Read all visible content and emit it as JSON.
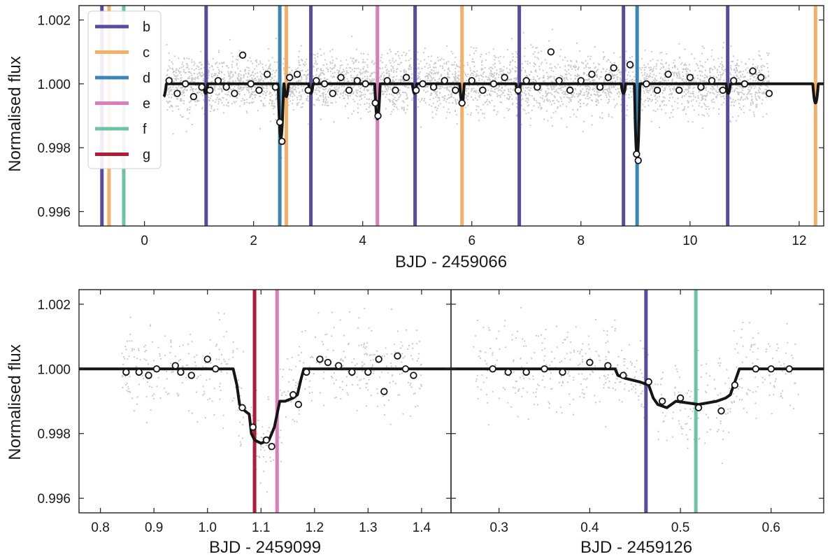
{
  "chart_data": [
    {
      "type": "scatter",
      "panel": "top",
      "xlabel": "BJD - 2459066",
      "ylabel": "Normalised flux",
      "xlim": [
        -1.2,
        12.45
      ],
      "ylim": [
        0.99555,
        1.00245
      ],
      "xticks": [
        "0",
        "2",
        "4",
        "6",
        "8",
        "10",
        "12"
      ],
      "yticks": [
        "0.996",
        "0.998",
        "1.000",
        "1.002"
      ],
      "raw_data_range": [
        0.4,
        11.45
      ],
      "raw_scatter": 0.0006,
      "binned_points": [
        [
          0.45,
          1.0001
        ],
        [
          0.6,
          0.9997
        ],
        [
          0.75,
          1.0
        ],
        [
          0.9,
          0.9996
        ],
        [
          1.05,
          0.9999
        ],
        [
          1.2,
          0.9998
        ],
        [
          1.35,
          1.0001
        ],
        [
          1.5,
          0.9999
        ],
        [
          1.65,
          0.9997
        ],
        [
          1.8,
          1.0009
        ],
        [
          1.95,
          1.0
        ],
        [
          2.1,
          0.9998
        ],
        [
          2.25,
          1.0003
        ],
        [
          2.4,
          0.9999
        ],
        [
          2.48,
          0.9988
        ],
        [
          2.52,
          0.9982
        ],
        [
          2.66,
          1.0002
        ],
        [
          2.8,
          1.0003
        ],
        [
          3.0,
          0.9998
        ],
        [
          3.15,
          1.0001
        ],
        [
          3.3,
          1.0
        ],
        [
          3.45,
          0.9997
        ],
        [
          3.6,
          1.0002
        ],
        [
          3.75,
          0.9998
        ],
        [
          3.9,
          1.0001
        ],
        [
          4.05,
          1.0
        ],
        [
          4.23,
          0.9994
        ],
        [
          4.28,
          0.999
        ],
        [
          4.45,
          1.0001
        ],
        [
          4.6,
          0.9998
        ],
        [
          4.8,
          1.0002
        ],
        [
          4.98,
          0.9998
        ],
        [
          5.1,
          1.0
        ],
        [
          5.3,
          0.9999
        ],
        [
          5.5,
          1.0001
        ],
        [
          5.7,
          0.9998
        ],
        [
          5.82,
          0.9994
        ],
        [
          6.0,
          1.0001
        ],
        [
          6.2,
          0.9998
        ],
        [
          6.4,
          1.0
        ],
        [
          6.6,
          1.0002
        ],
        [
          6.85,
          0.9998
        ],
        [
          7.0,
          1.0001
        ],
        [
          7.2,
          0.9999
        ],
        [
          7.45,
          1.001
        ],
        [
          7.6,
          1.0001
        ],
        [
          7.8,
          0.9998
        ],
        [
          8.0,
          1.0001
        ],
        [
          8.2,
          1.0003
        ],
        [
          8.35,
          0.9999
        ],
        [
          8.5,
          1.0002
        ],
        [
          8.6,
          1.0005
        ],
        [
          8.9,
          1.0006
        ],
        [
          9.02,
          0.9978
        ],
        [
          9.05,
          0.9976
        ],
        [
          9.2,
          1.0
        ],
        [
          9.4,
          0.9998
        ],
        [
          9.6,
          1.0003
        ],
        [
          9.8,
          0.9998
        ],
        [
          10.0,
          1.0002
        ],
        [
          10.2,
          0.9999
        ],
        [
          10.4,
          1.0001
        ],
        [
          10.6,
          0.9998
        ],
        [
          10.8,
          1.0001
        ],
        [
          11.0,
          1.0
        ],
        [
          11.15,
          1.0004
        ],
        [
          11.3,
          1.0002
        ],
        [
          11.45,
          0.9997
        ]
      ],
      "model": {
        "baseline": 1.0,
        "dips": [
          [
            0.35,
            0.9996,
            0.05
          ],
          [
            1.12,
            0.9997,
            0.04
          ],
          [
            2.5,
            0.9983,
            0.05
          ],
          [
            2.6,
            0.9996,
            0.04
          ],
          [
            3.05,
            0.9997,
            0.04
          ],
          [
            4.27,
            0.9989,
            0.05
          ],
          [
            4.95,
            0.9997,
            0.04
          ],
          [
            5.82,
            0.9994,
            0.04
          ],
          [
            6.85,
            0.9997,
            0.04
          ],
          [
            8.78,
            0.9997,
            0.04
          ],
          [
            9.03,
            0.9977,
            0.05
          ],
          [
            10.7,
            0.9997,
            0.04
          ],
          [
            12.3,
            0.9994,
            0.05
          ]
        ]
      },
      "legend_placement": "upper-left",
      "legend": [
        "b",
        "c",
        "d",
        "e",
        "f",
        "g"
      ],
      "series_colors": {
        "b": "#5a4c9c",
        "c": "#f5b068",
        "d": "#3b86b5",
        "e": "#d97dbc",
        "f": "#6cc4a4",
        "g": "#ad1e36"
      },
      "vlines": [
        {
          "planet": "b",
          "x": [
            -0.78,
            1.13,
            3.05,
            4.96,
            6.87,
            8.78,
            10.69
          ]
        },
        {
          "planet": "c",
          "x": [
            -0.65,
            2.6,
            5.82,
            12.3
          ]
        },
        {
          "planet": "d",
          "x": [
            2.48,
            9.03
          ]
        },
        {
          "planet": "e",
          "x": [
            4.27
          ]
        },
        {
          "planet": "f",
          "x": [
            -0.38
          ]
        }
      ],
      "grid": false
    },
    {
      "type": "scatter",
      "panel": "bottom-left",
      "xlabel": "BJD - 2459099",
      "ylabel": "Normalised flux",
      "xlim": [
        0.76,
        1.455
      ],
      "ylim": [
        0.99555,
        1.00245
      ],
      "xticks": [
        "0.8",
        "0.9",
        "1.0",
        "1.1",
        "1.2",
        "1.3",
        "1.4"
      ],
      "yticks": [
        "0.996",
        "0.998",
        "1.000",
        "1.002"
      ],
      "raw_data_range": [
        0.84,
        1.4
      ],
      "raw_scatter": 0.0009,
      "binned_points": [
        [
          0.848,
          0.9999
        ],
        [
          0.872,
          0.9999
        ],
        [
          0.89,
          0.9998
        ],
        [
          0.905,
          1.0
        ],
        [
          0.94,
          1.0001
        ],
        [
          0.95,
          0.9999
        ],
        [
          0.97,
          0.9998
        ],
        [
          1.0,
          1.0003
        ],
        [
          1.015,
          1.0
        ],
        [
          1.065,
          0.9988
        ],
        [
          1.085,
          0.9982
        ],
        [
          1.11,
          0.9978
        ],
        [
          1.12,
          0.9976
        ],
        [
          1.16,
          0.9992
        ],
        [
          1.17,
          0.9989
        ],
        [
          1.185,
          0.9999
        ],
        [
          1.21,
          1.0003
        ],
        [
          1.225,
          1.0002
        ],
        [
          1.245,
          1.0001
        ],
        [
          1.27,
          0.9999
        ],
        [
          1.3,
          0.9999
        ],
        [
          1.32,
          1.0003
        ],
        [
          1.33,
          0.9993
        ],
        [
          1.355,
          1.0004
        ],
        [
          1.37,
          1.0
        ],
        [
          1.385,
          0.9998
        ]
      ],
      "model_curve": [
        [
          0.76,
          1.0
        ],
        [
          1.048,
          1.0
        ],
        [
          1.055,
          0.9995
        ],
        [
          1.06,
          0.9989
        ],
        [
          1.07,
          0.9987
        ],
        [
          1.078,
          0.9986
        ],
        [
          1.082,
          0.998
        ],
        [
          1.088,
          0.9978
        ],
        [
          1.1,
          0.9977
        ],
        [
          1.115,
          0.9978
        ],
        [
          1.125,
          0.9982
        ],
        [
          1.135,
          0.999
        ],
        [
          1.145,
          0.999
        ],
        [
          1.16,
          0.9991
        ],
        [
          1.168,
          0.9992
        ],
        [
          1.175,
          0.9997
        ],
        [
          1.18,
          1.0
        ],
        [
          1.455,
          1.0
        ]
      ],
      "vlines": [
        {
          "planet": "g",
          "x": [
            1.088
          ]
        },
        {
          "planet": "e",
          "x": [
            1.13
          ]
        }
      ],
      "grid": false
    },
    {
      "type": "scatter",
      "panel": "bottom-right",
      "xlabel": "BJD - 2459126",
      "ylabel": "",
      "xlim": [
        0.247,
        0.658
      ],
      "ylim": [
        0.99555,
        1.00245
      ],
      "xticks": [
        "0.3",
        "0.4",
        "0.5",
        "0.6"
      ],
      "yticks": [],
      "raw_data_range": [
        0.27,
        0.63
      ],
      "raw_scatter": 0.0009,
      "binned_points": [
        [
          0.293,
          1.0
        ],
        [
          0.31,
          0.9999
        ],
        [
          0.33,
          0.9999
        ],
        [
          0.35,
          1.0
        ],
        [
          0.37,
          0.9999
        ],
        [
          0.4,
          1.0002
        ],
        [
          0.42,
          1.0001
        ],
        [
          0.437,
          0.9998
        ],
        [
          0.465,
          0.9996
        ],
        [
          0.48,
          0.999
        ],
        [
          0.5,
          0.9991
        ],
        [
          0.52,
          0.9988
        ],
        [
          0.545,
          0.9987
        ],
        [
          0.56,
          0.9995
        ],
        [
          0.583,
          1.0
        ],
        [
          0.6,
          1.0
        ],
        [
          0.62,
          1.0
        ]
      ],
      "model_curve": [
        [
          0.247,
          1.0
        ],
        [
          0.428,
          1.0
        ],
        [
          0.431,
          0.9998
        ],
        [
          0.44,
          0.9997
        ],
        [
          0.455,
          0.9996
        ],
        [
          0.465,
          0.9995
        ],
        [
          0.47,
          0.9991
        ],
        [
          0.475,
          0.9989
        ],
        [
          0.485,
          0.9988
        ],
        [
          0.49,
          0.9989
        ],
        [
          0.495,
          0.999
        ],
        [
          0.52,
          0.9989
        ],
        [
          0.54,
          0.999
        ],
        [
          0.55,
          0.9991
        ],
        [
          0.555,
          0.9992
        ],
        [
          0.56,
          0.9996
        ],
        [
          0.565,
          1.0
        ],
        [
          0.658,
          1.0
        ]
      ],
      "vlines": [
        {
          "planet": "b",
          "x": [
            0.462
          ]
        },
        {
          "planet": "f",
          "x": [
            0.517
          ]
        }
      ],
      "grid": false
    }
  ]
}
